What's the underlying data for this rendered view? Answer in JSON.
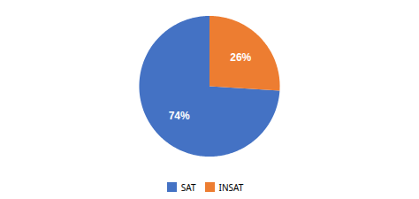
{
  "chart_data": {
    "type": "pie",
    "categories": [
      "SAT",
      "INSAT"
    ],
    "values": [
      74,
      26
    ],
    "value_labels": [
      "74%",
      "26%"
    ],
    "colors": [
      "#4472C4",
      "#ED7D31"
    ],
    "data_labels": true,
    "legend": "bottom"
  }
}
